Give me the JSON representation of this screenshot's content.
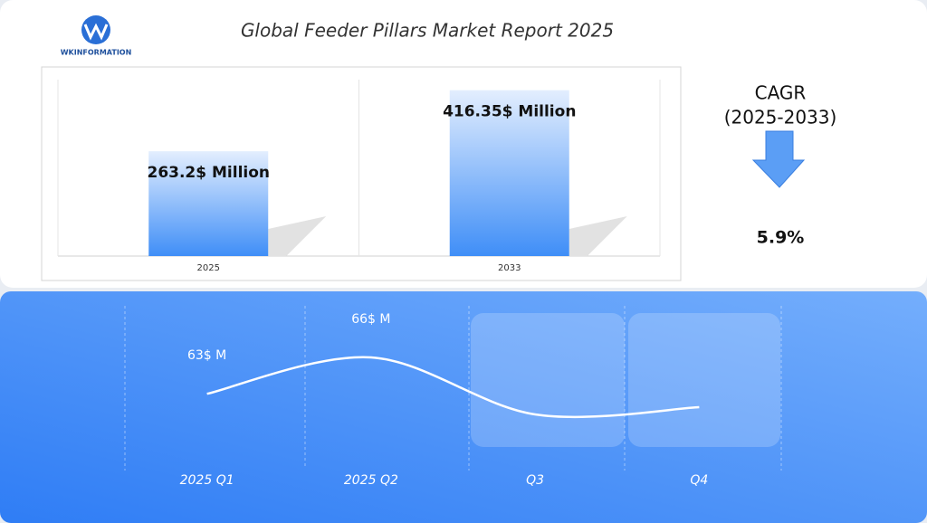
{
  "header": {
    "logo": "WKINFORMATION",
    "title": "Global Feeder Pillars Market Report 2025"
  },
  "chart_data": [
    {
      "type": "bar",
      "categories": [
        "2025",
        "2033"
      ],
      "values": [
        263.2,
        416.35
      ],
      "value_labels": [
        "263.2$ Million",
        "416.35$ Million"
      ],
      "color": "#3f8ef7"
    },
    {
      "type": "line",
      "categories": [
        "2025 Q1",
        "2025 Q2",
        "Q3",
        "Q4"
      ],
      "values": [
        63,
        66,
        61.3,
        61.9
      ],
      "value_labels": [
        "63$ M",
        "66$ M",
        null,
        null
      ],
      "color": "#ffffff"
    }
  ],
  "cagr": {
    "label": "CAGR",
    "period": "(2025-2033)",
    "value": "5.9%"
  }
}
